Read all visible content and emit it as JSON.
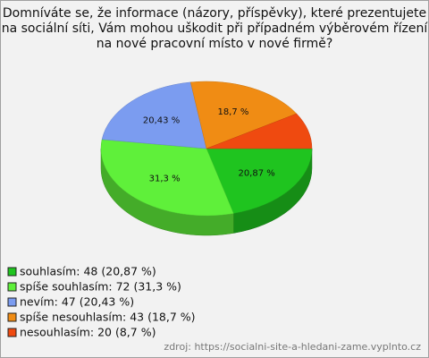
{
  "chart_data": {
    "type": "pie",
    "title": [
      "Domníváte se, že informace (názory, příspěvky), které prezentujete",
      "na sociální síti, Vám mohou uškodit při případném výběrovém řízení",
      "na nové pracovní místo v nové firmě?"
    ],
    "categories": [
      "souhlasím: 48 (20,87 %)",
      "spíše souhlasím: 72 (31,3 %)",
      "nevím: 47 (20,43 %)",
      "spíše nesouhlasím: 43 (18,7 %)",
      "nesouhlasím: 20 (8,7 %)"
    ],
    "values": [
      20.87,
      31.3,
      20.43,
      18.7,
      8.7
    ],
    "value_labels": [
      "20,87 %",
      "31,3 %",
      "20,43 %",
      "18,7 %",
      null
    ],
    "colors": [
      "#1fc41f",
      "#5ff03a",
      "#7b9cf0",
      "#f08c14",
      "#ef4a10"
    ],
    "source": "zdroj: https://socialni-site-a-hledani-zame.vyplnto.cz"
  }
}
